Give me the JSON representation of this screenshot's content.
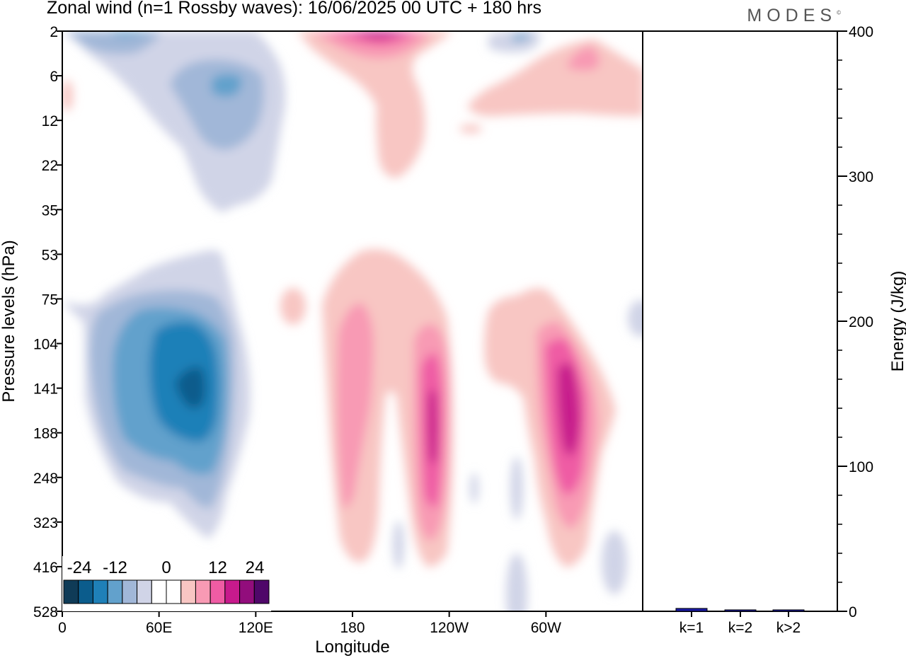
{
  "header": {
    "title": "Zonal wind (n=1 Rossby waves):  16/06/2025  00 UTC  + 180 hrs",
    "logo": "MODES",
    "logo_mark": "©"
  },
  "chart_data": [
    {
      "type": "heatmap",
      "title": "Zonal wind (n=1 Rossby waves):  16/06/2025  00 UTC  + 180 hrs",
      "xlabel": "Longitude",
      "ylabel": "Pressure levels (hPa)",
      "x_ticks": [
        "0",
        "60E",
        "120E",
        "180",
        "120W",
        "60W"
      ],
      "y_ticks": [
        "2",
        "6",
        "12",
        "22",
        "35",
        "53",
        "75",
        "104",
        "141",
        "188",
        "248",
        "323",
        "416",
        "528"
      ],
      "colorbar": {
        "labels": [
          "-24",
          "-12",
          "0",
          "12",
          "24"
        ],
        "colors": [
          "#0f3b57",
          "#0b5c8c",
          "#1f80b8",
          "#62a1cc",
          "#a1b7d8",
          "#d0d4e7",
          "#ffffff",
          "#ffffff",
          "#f8c6c3",
          "#f89ab4",
          "#ef5ca4",
          "#c71a8c",
          "#920d7c",
          "#4f0769"
        ]
      },
      "features": [
        {
          "sign": "negative",
          "level": 5,
          "center_lon": 80,
          "center_level": "141",
          "note": "strongest easterly core"
        },
        {
          "sign": "negative",
          "level": 2,
          "center_lon": 100,
          "center_level": "6"
        },
        {
          "sign": "positive",
          "level": 3,
          "center_lon": 232,
          "center_level": "188"
        },
        {
          "sign": "positive",
          "level": 3,
          "center_lon": 305,
          "center_level": "141"
        },
        {
          "sign": "positive",
          "level": 3,
          "center_lon": 190,
          "center_level": "2"
        }
      ]
    },
    {
      "type": "bar",
      "ylabel": "Energy (J/kg)",
      "categories": [
        "k=1",
        "k=2",
        "k>2"
      ],
      "values": [
        2,
        1,
        1
      ],
      "ylim": [
        0,
        400
      ],
      "y_ticks": [
        "0",
        "100",
        "200",
        "300",
        "400"
      ],
      "bar_color": "#1a1aa6"
    }
  ]
}
